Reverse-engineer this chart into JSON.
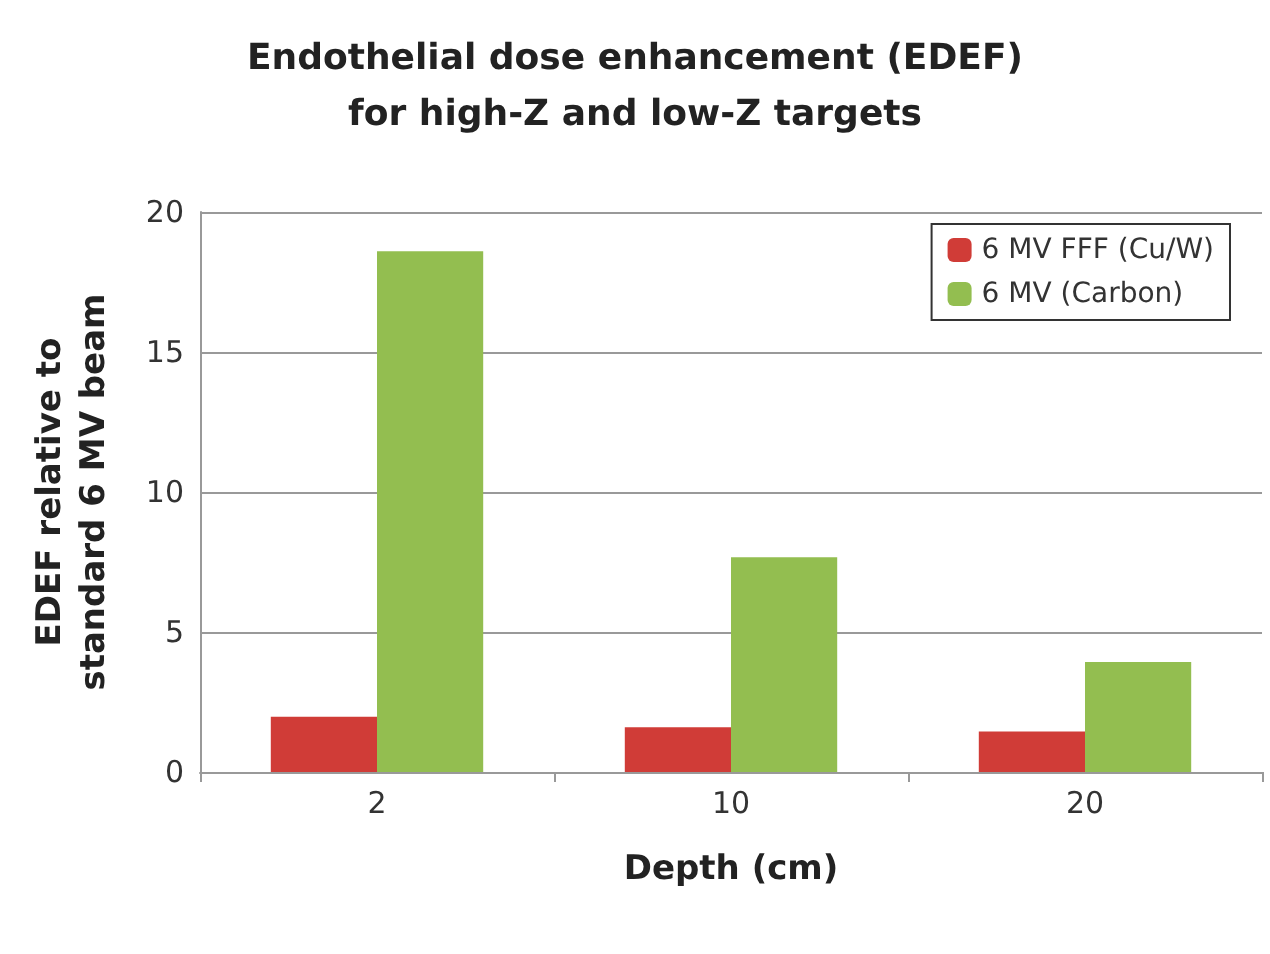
{
  "chart_data": {
    "type": "bar",
    "title": "Endothelial dose enhancement (EDEF)\nfor high-Z and low-Z targets",
    "xlabel": "Depth (cm)",
    "ylabel": "EDEF relative to\nstandard 6 MV beam",
    "categories": [
      "2",
      "10",
      "20"
    ],
    "series": [
      {
        "name": "6 MV FFF (Cu/W)",
        "color": "#d03c37",
        "values": [
          1.97,
          1.6,
          1.45
        ]
      },
      {
        "name": "6 MV (Carbon)",
        "color": "#93be50",
        "values": [
          18.6,
          7.67,
          3.93
        ]
      }
    ],
    "ylim": [
      0,
      20
    ],
    "yticks": [
      0,
      5,
      10,
      15,
      20
    ],
    "grid": "y",
    "legend": "top right"
  }
}
